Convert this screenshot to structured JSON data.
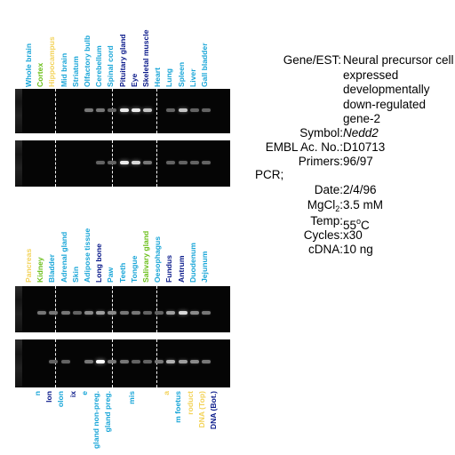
{
  "colors": {
    "blue": "#1aa6d8",
    "green": "#6bbf1a",
    "yellow": "#f3d35a",
    "navy": "#0a1a8a",
    "gel_bg": "#050505",
    "band_bright": "#ffffff",
    "band_dim": "#8a8a8a"
  },
  "top_panel": {
    "labels": [
      {
        "text": "Whole brain",
        "color": "#1aa6d8"
      },
      {
        "text": "Cortex",
        "color": "#6bbf1a"
      },
      {
        "text": "Hippocampus",
        "color": "#f3d35a"
      },
      {
        "text": "Mid brain",
        "color": "#1aa6d8"
      },
      {
        "text": "Striatum",
        "color": "#1aa6d8"
      },
      {
        "text": "Olfactory bulb",
        "color": "#1aa6d8"
      },
      {
        "text": "Cerebellum",
        "color": "#1aa6d8"
      },
      {
        "text": "Spinal cord",
        "color": "#1aa6d8"
      },
      {
        "text": "Pituitary gland",
        "color": "#0a1a8a"
      },
      {
        "text": "Eye",
        "color": "#0a1a8a"
      },
      {
        "text": "Skeletal muscle",
        "color": "#0a1a8a"
      },
      {
        "text": "Heart",
        "color": "#1aa6d8"
      },
      {
        "text": "Lung",
        "color": "#1aa6d8"
      },
      {
        "text": "Spleen",
        "color": "#1aa6d8"
      },
      {
        "text": "Liver",
        "color": "#1aa6d8"
      },
      {
        "text": "Gall bladder",
        "color": "#1aa6d8"
      }
    ],
    "gel1_bands": [
      0,
      0,
      0,
      0,
      0,
      0.3,
      0.3,
      0.2,
      0.9,
      0.9,
      0.7,
      0,
      0.2,
      0.7,
      0.2,
      0.2
    ],
    "gel2_bands": [
      0,
      0,
      0,
      0,
      0,
      0,
      0.2,
      0.2,
      0.9,
      0.8,
      0.3,
      0,
      0.2,
      0.2,
      0.2,
      0.2
    ]
  },
  "middle_panel": {
    "labels": [
      {
        "text": "Pancreas",
        "color": "#f3d35a"
      },
      {
        "text": "Kidney",
        "color": "#6bbf1a"
      },
      {
        "text": "Bladder",
        "color": "#1aa6d8"
      },
      {
        "text": "Adrenal gland",
        "color": "#1aa6d8"
      },
      {
        "text": "Skin",
        "color": "#1aa6d8"
      },
      {
        "text": "Adipose tissue",
        "color": "#1aa6d8"
      },
      {
        "text": "Long bone",
        "color": "#0a1a8a"
      },
      {
        "text": "Paw",
        "color": "#1aa6d8"
      },
      {
        "text": "Teeth",
        "color": "#1aa6d8"
      },
      {
        "text": "Tongue",
        "color": "#1aa6d8"
      },
      {
        "text": "Salivary gland",
        "color": "#6bbf1a"
      },
      {
        "text": "Oesophagus",
        "color": "#1aa6d8"
      },
      {
        "text": "Fundus",
        "color": "#0a1a8a"
      },
      {
        "text": "Antrum",
        "color": "#0a1a8a"
      },
      {
        "text": "Duodenum",
        "color": "#1aa6d8"
      },
      {
        "text": "Jejunum",
        "color": "#1aa6d8"
      }
    ],
    "gel3_bands": [
      0,
      0.3,
      0.3,
      0.3,
      0.2,
      0.4,
      0.5,
      0.4,
      0.3,
      0.3,
      0.2,
      0.2,
      0.5,
      0.8,
      0.4,
      0.3
    ],
    "gel4_bands": [
      0,
      0,
      0.2,
      0.2,
      0,
      0.3,
      1.0,
      0.3,
      0.3,
      0.2,
      0.2,
      0.3,
      0.6,
      0.5,
      0.4,
      0.3
    ]
  },
  "bottom_panel": {
    "labels": [
      {
        "text": "n",
        "color": "#1aa6d8"
      },
      {
        "text": "lon",
        "color": "#0a1a8a"
      },
      {
        "text": "olon",
        "color": "#1aa6d8"
      },
      {
        "text": "ix",
        "color": "#0a1a8a"
      },
      {
        "text": "e",
        "color": "#1aa6d8"
      },
      {
        "text": "gland non-preg.",
        "color": "#1aa6d8"
      },
      {
        "text": "gland preg.",
        "color": "#1aa6d8"
      },
      {
        "text": "",
        "color": "#1aa6d8"
      },
      {
        "text": "mis",
        "color": "#1aa6d8"
      },
      {
        "text": "",
        "color": "#1aa6d8"
      },
      {
        "text": "",
        "color": "#1aa6d8"
      },
      {
        "text": "a",
        "color": "#f3d35a"
      },
      {
        "text": "m foetus",
        "color": "#1aa6d8"
      },
      {
        "text": "roduct",
        "color": "#f3d35a"
      },
      {
        "text": "DNA (Top)",
        "color": "#f3d35a"
      },
      {
        "text": "DNA (Bot.)",
        "color": "#0a1a8a"
      }
    ]
  },
  "info": {
    "gene_key": "Gene/EST:",
    "gene_lines": [
      "Neural precursor cell",
      "expressed",
      "developmentally",
      "down-regulated",
      "gene-2"
    ],
    "symbol_key": "Symbol:",
    "symbol_value": "Nedd2",
    "embl_key": "EMBL Ac. No.:",
    "embl_value": "D10713",
    "primers_key": "Primers:",
    "primers_value": "96/97",
    "pcr_label": "PCR;",
    "date_key": "Date:",
    "date_value": "2/4/96",
    "mgcl_key_main": "MgCl",
    "mgcl_key_sub": "2",
    "mgcl_key_colon": ":",
    "mgcl_value": "3.5 mM",
    "temp_key": "Temp:",
    "temp_value_num": "55",
    "temp_value_deg": "o",
    "temp_value_unit": "C",
    "cycles_key": "Cycles:",
    "cycles_value": "x30",
    "cdna_key": "cDNA:",
    "cdna_value": "10 ng"
  }
}
